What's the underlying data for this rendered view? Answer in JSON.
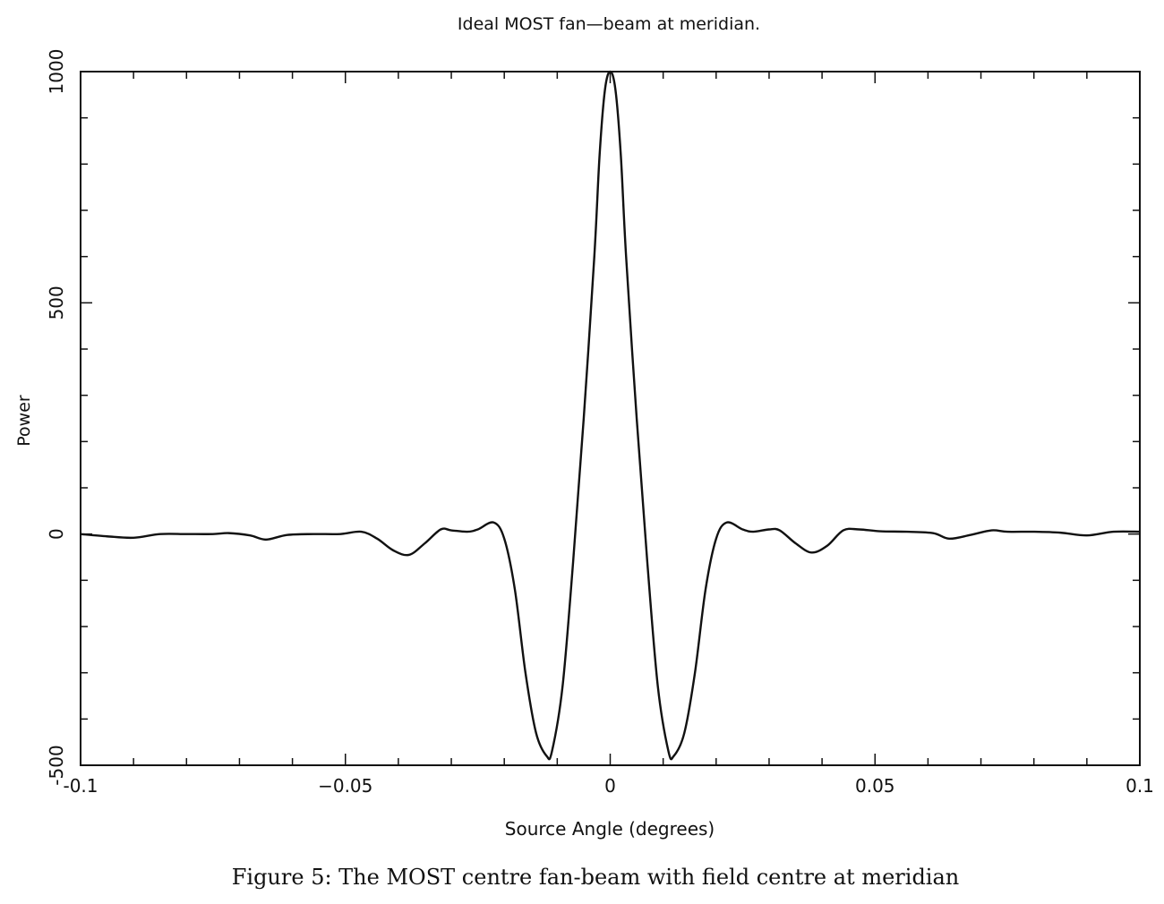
{
  "chart_data": {
    "type": "line",
    "title": "Ideal MOST fan—beam at meridian.",
    "xlabel": "Source Angle (degrees)",
    "ylabel": "Power",
    "xlim": [
      -0.1,
      0.1
    ],
    "ylim": [
      -500,
      1000
    ],
    "x_ticks": [
      "-0.1",
      "−0.05",
      "0",
      "0.05",
      "0.1"
    ],
    "y_ticks": [
      "-500",
      "0",
      "500",
      "1000"
    ],
    "grid": false,
    "caption": "Figure 5: The MOST centre fan-beam with field centre at meridian",
    "line_color": "#111111",
    "series": [
      {
        "x": [
          -0.1,
          -0.095,
          -0.09,
          -0.085,
          -0.08,
          -0.075,
          -0.072,
          -0.068,
          -0.065,
          -0.061,
          -0.056,
          -0.051,
          -0.047,
          -0.044,
          -0.041,
          -0.038,
          -0.035,
          -0.032,
          -0.03,
          -0.027,
          -0.025,
          -0.022,
          -0.02,
          -0.018,
          -0.016,
          -0.014,
          -0.012,
          -0.011,
          -0.009,
          -0.007,
          -0.005,
          -0.003,
          -0.002,
          -0.001,
          0,
          0.001,
          0.002,
          0.003,
          0.005,
          0.007,
          0.009,
          0.011,
          0.012,
          0.014,
          0.016,
          0.018,
          0.02,
          0.022,
          0.025,
          0.027,
          0.03,
          0.032,
          0.035,
          0.038,
          0.041,
          0.044,
          0.047,
          0.051,
          0.056,
          0.061,
          0.064,
          0.068,
          0.072,
          0.075,
          0.08,
          0.085,
          0.09,
          0.095,
          0.1
        ],
        "y": [
          0,
          -5,
          -8,
          0,
          0,
          0,
          2,
          -3,
          -12,
          -2,
          0,
          0,
          5,
          -10,
          -35,
          -45,
          -20,
          10,
          8,
          5,
          10,
          25,
          -10,
          -120,
          -300,
          -430,
          -480,
          -470,
          -330,
          -60,
          250,
          600,
          820,
          960,
          1000,
          960,
          820,
          600,
          250,
          -60,
          -330,
          -470,
          -480,
          -430,
          -300,
          -120,
          -10,
          25,
          10,
          5,
          10,
          8,
          -20,
          -40,
          -25,
          8,
          10,
          6,
          5,
          2,
          -10,
          -2,
          8,
          5,
          5,
          3,
          -3,
          5,
          5
        ]
      }
    ]
  }
}
